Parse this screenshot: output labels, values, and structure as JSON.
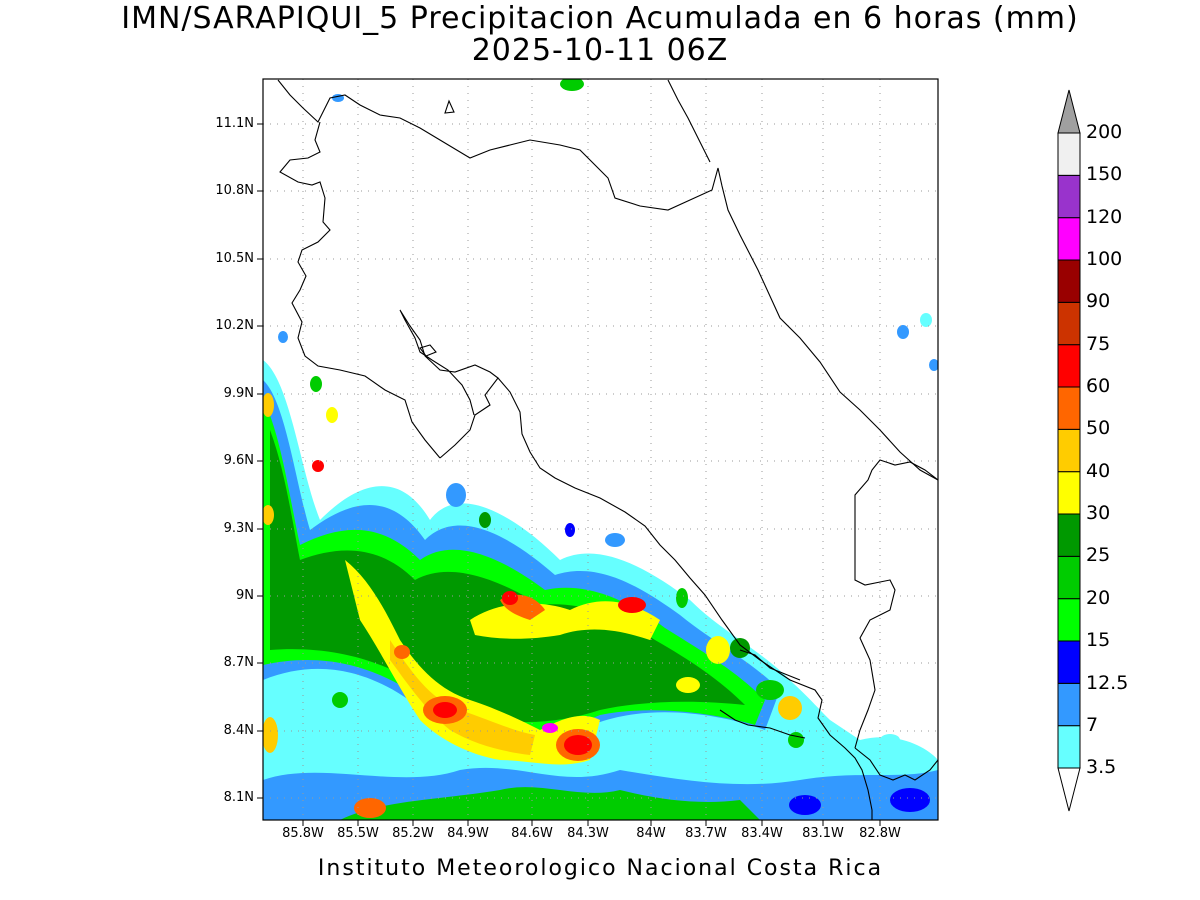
{
  "header": {
    "title_line1": "IMN/SARAPIQUI_5 Precipitacion Acumulada en 6 horas (mm)",
    "title_line2": "2025-10-11 06Z"
  },
  "footer": {
    "credit": "Instituto Meteorologico Nacional Costa Rica"
  },
  "map": {
    "lat_ticks": [
      "11.1N",
      "10.8N",
      "10.5N",
      "10.2N",
      "9.9N",
      "9.6N",
      "9.3N",
      "9N",
      "8.7N",
      "8.4N",
      "8.1N"
    ],
    "lon_ticks": [
      "85.8W",
      "85.5W",
      "85.2W",
      "84.9W",
      "84.6W",
      "84.3W",
      "84W",
      "83.7W",
      "83.4W",
      "83.1W",
      "82.8W"
    ],
    "gridlines": true,
    "coastline_color": "#000000"
  },
  "colorbar": {
    "labels": [
      "3.5",
      "7",
      "12.5",
      "15",
      "20",
      "25",
      "30",
      "40",
      "50",
      "60",
      "75",
      "90",
      "100",
      "120",
      "150",
      "200"
    ],
    "colors": [
      "#66ffff",
      "#3399ff",
      "#0000ff",
      "#00ff00",
      "#00cc00",
      "#009900",
      "#ffff00",
      "#ffcc00",
      "#ff6600",
      "#ff0000",
      "#cc3300",
      "#990000",
      "#ff00ff",
      "#9933cc",
      "#f0f0f0"
    ],
    "over_color": "#a0a0a0",
    "under_color": "#ffffff"
  }
}
